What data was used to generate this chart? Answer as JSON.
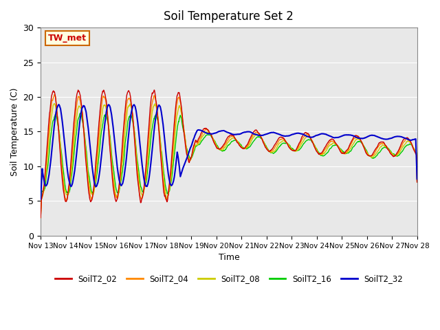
{
  "title": "Soil Temperature Set 2",
  "xlabel": "Time",
  "ylabel": "Soil Temperature (C)",
  "annotation": "TW_met",
  "ylim": [
    0,
    30
  ],
  "series_colors": {
    "SoilT2_02": "#cc0000",
    "SoilT2_04": "#ff8800",
    "SoilT2_08": "#cccc00",
    "SoilT2_16": "#00cc00",
    "SoilT2_32": "#0000cc"
  },
  "bg_color": "#e8e8e8",
  "x_tick_labels": [
    "Nov 13",
    "Nov 14",
    "Nov 15",
    "Nov 16",
    "Nov 17",
    "Nov 18",
    "Nov 19",
    "Nov 20",
    "Nov 21",
    "Nov 22",
    "Nov 23",
    "Nov 24",
    "Nov 25",
    "Nov 26",
    "Nov 27",
    "Nov 28"
  ]
}
